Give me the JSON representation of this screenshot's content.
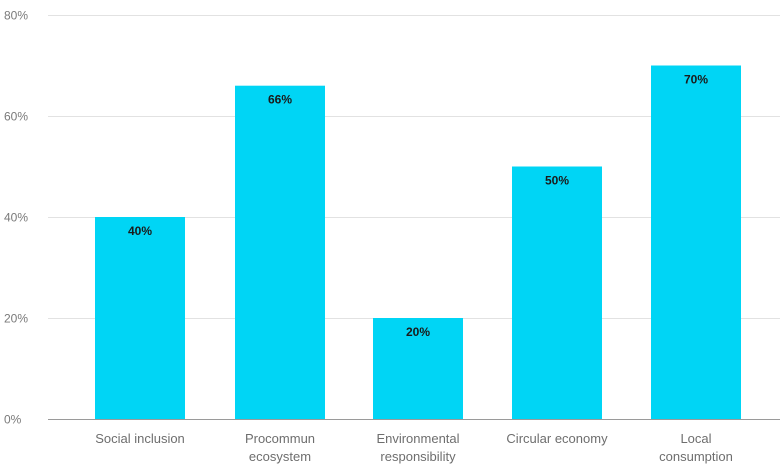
{
  "chart_data": {
    "type": "bar",
    "title": "",
    "xlabel": "",
    "ylabel": "",
    "categories": [
      [
        "Social inclusion"
      ],
      [
        "Procommun",
        "ecosystem"
      ],
      [
        "Environmental",
        "responsibility"
      ],
      [
        "Circular economy"
      ],
      [
        "Local",
        "consumption"
      ]
    ],
    "values": [
      40,
      66,
      20,
      50,
      70
    ],
    "data_labels": [
      "40%",
      "66%",
      "20%",
      "50%",
      "70%"
    ],
    "ylim": [
      0,
      80
    ],
    "yticks": [
      0,
      20,
      40,
      60,
      80
    ],
    "ytick_labels": [
      "0%",
      "20%",
      "40%",
      "60%",
      "80%"
    ],
    "grid": true,
    "legend": "none",
    "bar_color": "#00d5f5"
  }
}
